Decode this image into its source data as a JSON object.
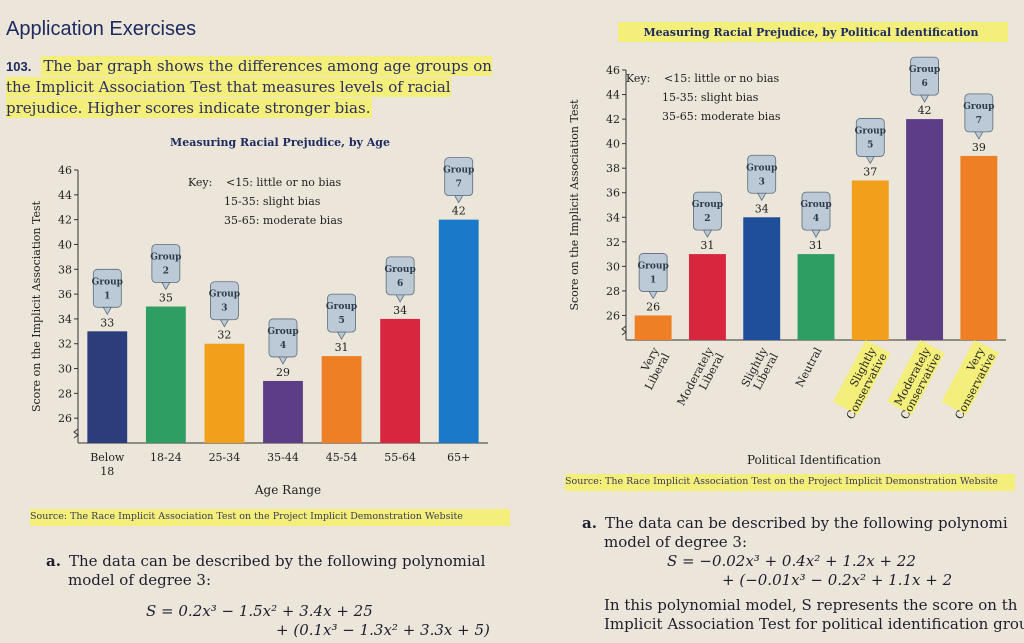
{
  "page": {
    "heading": "Application Exercises",
    "exercise_number": "103.",
    "intro": "The bar graph shows the differences among age groups on the Implicit Association Test that measures levels of racial prejudice. Higher scores indicate stronger bias.",
    "left_source": "Source: The Race Implicit Association Test on the Project Implicit Demonstration Website",
    "right_source": "Source: The Race Implicit Association Test on the Project Implicit Demonstration Website",
    "left_part_a_label": "a.",
    "left_part_a_line1": "The data can be described by the following polynomial",
    "left_part_a_line2": "model of degree 3:",
    "left_formula_1": "S = 0.2x³ − 1.5x² + 3.4x + 25",
    "left_formula_2": "+ (0.1x³ − 1.3x² + 3.3x + 5)",
    "right_part_a_label": "a.",
    "right_part_a_line1": "The data can be described by the following polynomi",
    "right_part_a_line2": "model of degree 3:",
    "right_formula_1": "S = −0.02x³ + 0.4x² + 1.2x + 22",
    "right_formula_2": "+ (−0.01x³ − 0.2x² + 1.1x + 2",
    "right_line3": "In this polynomial model, S represents the score on th",
    "right_line4": "Implicit Association Test for political identification group"
  },
  "colors": {
    "highlight": "#f4ee7a",
    "navy": "#2b3d7a",
    "green": "#2f9e62",
    "orange": "#f2a01c",
    "purple": "#5d3e86",
    "light_orange": "#ef7f24",
    "red": "#d7263d",
    "blue": "#1a7ac9",
    "callout": "#bcc9d6"
  },
  "chart_data": [
    {
      "type": "bar",
      "title": "Measuring Racial Prejudice, by Age",
      "xlabel": "Age Range",
      "ylabel": "Score on the Implicit Association Test",
      "categories": [
        "Below 18",
        "18-24",
        "25-34",
        "35-44",
        "45-54",
        "55-64",
        "65+"
      ],
      "values": [
        33,
        35,
        32,
        29,
        31,
        34,
        42
      ],
      "groups": [
        "Group 1",
        "Group 2",
        "Group 3",
        "Group 4",
        "Group 5",
        "Group 6",
        "Group 7"
      ],
      "colors": [
        "#2b3d7a",
        "#2f9e62",
        "#f2a01c",
        "#5d3e86",
        "#ef7f24",
        "#d7263d",
        "#1a7ac9"
      ],
      "ylim": [
        24,
        46
      ],
      "yticks": [
        26,
        28,
        30,
        32,
        34,
        36,
        38,
        40,
        42,
        44,
        46
      ],
      "key_title": "Key:",
      "key": [
        "<15: little or no bias",
        "15-35: slight bias",
        "35-65: moderate bias"
      ],
      "grid": false
    },
    {
      "type": "bar",
      "title": "Measuring Racial Prejudice, by Political Identification",
      "xlabel": "Political Identification",
      "ylabel": "Score on the Implicit Association Test",
      "categories": [
        "Very Liberal",
        "Moderately Liberal",
        "Slightly Liberal",
        "Neutral",
        "Slightly Conservative",
        "Moderately Conservative",
        "Very Conservative"
      ],
      "values": [
        26,
        31,
        34,
        31,
        37,
        42,
        39
      ],
      "groups": [
        "Group 1",
        "Group 2",
        "Group 3",
        "Group 4",
        "Group 5",
        "Group 6",
        "Group 7"
      ],
      "colors": [
        "#ef7f24",
        "#d7263d",
        "#1f4e9b",
        "#2f9e62",
        "#f2a01c",
        "#5d3e86",
        "#ef7f24"
      ],
      "ylim": [
        24,
        46
      ],
      "yticks": [
        26,
        28,
        30,
        32,
        34,
        36,
        38,
        40,
        42,
        44,
        46
      ],
      "key_title": "Key:",
      "key": [
        "<15: little or no bias",
        "15-35: slight bias",
        "35-65: moderate bias"
      ],
      "grid": false
    }
  ]
}
